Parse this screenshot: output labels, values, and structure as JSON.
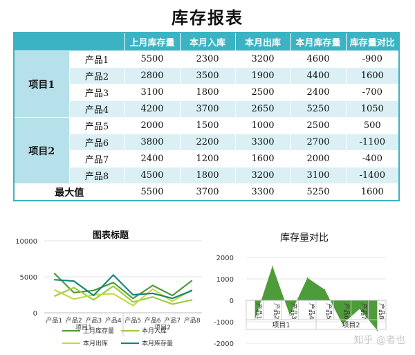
{
  "title": "库存报表",
  "table": {
    "headers": [
      "上月库存量",
      "本月入库",
      "本月出库",
      "本月库存量",
      "库存量对比"
    ],
    "groups": [
      "项目1",
      "项目2"
    ],
    "rows": [
      {
        "product": "产品1",
        "v": [
          "5500",
          "2300",
          "3200",
          "4600",
          "-900"
        ]
      },
      {
        "product": "产品2",
        "v": [
          "2800",
          "3500",
          "1900",
          "4400",
          "1600"
        ]
      },
      {
        "product": "产品3",
        "v": [
          "3100",
          "1800",
          "2500",
          "2400",
          "-700"
        ]
      },
      {
        "product": "产品4",
        "v": [
          "4200",
          "3700",
          "2650",
          "5250",
          "1050"
        ]
      },
      {
        "product": "产品5",
        "v": [
          "2000",
          "1500",
          "1000",
          "2500",
          "500"
        ]
      },
      {
        "product": "产品6",
        "v": [
          "3800",
          "2200",
          "3300",
          "2700",
          "-1100"
        ]
      },
      {
        "product": "产品7",
        "v": [
          "2400",
          "1200",
          "1600",
          "2000",
          "-400"
        ]
      },
      {
        "product": "产品8",
        "v": [
          "4500",
          "1800",
          "3200",
          "3100",
          "-1400"
        ]
      }
    ],
    "max": {
      "label": "最大值",
      "v": [
        "5500",
        "3700",
        "3300",
        "5250",
        "1600"
      ]
    }
  },
  "chart_data": [
    {
      "type": "line",
      "title": "图表标题",
      "categories": [
        "产品1",
        "产品2",
        "产品3",
        "产品4",
        "产品5",
        "产品6",
        "产品7",
        "产品8"
      ],
      "groups": [
        "项目1",
        "项目2"
      ],
      "ylim": [
        0,
        10000
      ],
      "yticks": [
        "0",
        "5000",
        "10000"
      ],
      "series": [
        {
          "name": "上月库存量",
          "color": "#4e9b3a",
          "values": [
            5500,
            2800,
            3100,
            4200,
            2000,
            3800,
            2400,
            4500
          ]
        },
        {
          "name": "本月入库",
          "color": "#9ccf3a",
          "values": [
            2300,
            3500,
            1800,
            3700,
            1500,
            2200,
            1200,
            1800
          ]
        },
        {
          "name": "本月出库",
          "color": "#c5d94a",
          "values": [
            3200,
            1900,
            2500,
            2650,
            1000,
            3300,
            1600,
            3200
          ]
        },
        {
          "name": "本月库存量",
          "color": "#17857a",
          "values": [
            4600,
            4400,
            2400,
            5250,
            2500,
            2700,
            2000,
            3100
          ]
        }
      ]
    },
    {
      "type": "area",
      "title": "库存量对比",
      "categories": [
        "产品1",
        "产品2",
        "产品3",
        "产品4",
        "产品5",
        "产品6",
        "产品7",
        "产品8"
      ],
      "groups": [
        "项目1",
        "项目2"
      ],
      "ylim": [
        -2000,
        2000
      ],
      "yticks": [
        "2000",
        "1000",
        "0",
        "-1000",
        "-2000"
      ],
      "color": "#4e9b3a",
      "values": [
        -900,
        1600,
        -700,
        1050,
        500,
        -1100,
        -400,
        -1400
      ]
    }
  ],
  "watermark": "知乎 @者也"
}
